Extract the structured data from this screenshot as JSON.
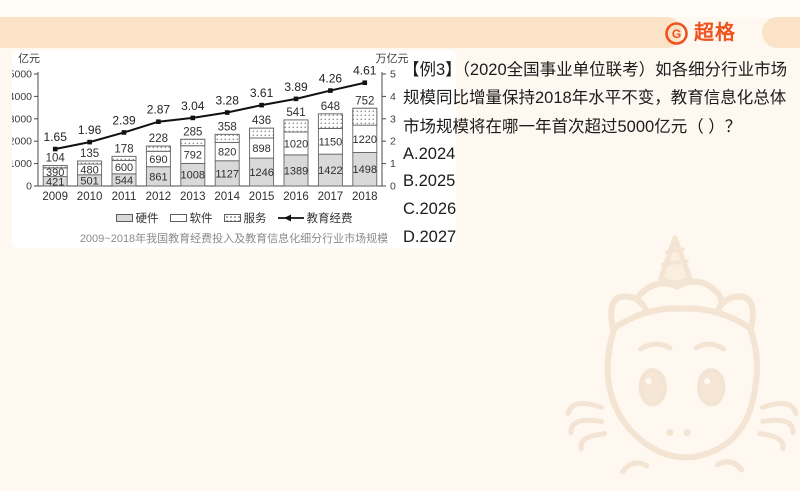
{
  "page": {
    "background": "#FEF8F1",
    "band_color": "#FAE3C6",
    "accent_color": "#F0521D"
  },
  "logo": {
    "text": "超格",
    "icon": "g-circle-icon",
    "color": "#F0521D"
  },
  "question": {
    "text": "【例3】（2020全国事业单位联考）如各细分行业市场规模同比增量保持2018年水平不变，教育信息化总体市场规模将在哪一年首次超过5000亿元（ ）？",
    "options": [
      "A.2024",
      "B.2025",
      "C.2026",
      "D.2027"
    ]
  },
  "chart_data": {
    "type": "bar",
    "subtype": "stacked-bars-with-line",
    "title": "2009~2018年我国教育经费投入及教育信息化细分行业市场规模",
    "categories": [
      "2009",
      "2010",
      "2011",
      "2012",
      "2013",
      "2014",
      "2015",
      "2016",
      "2017",
      "2018"
    ],
    "series": [
      {
        "name": "硬件",
        "style": "gray",
        "values": [
          421,
          501,
          544,
          861,
          1008,
          1127,
          1246,
          1389,
          1422,
          1498
        ]
      },
      {
        "name": "软件",
        "style": "white",
        "values": [
          390,
          480,
          600,
          690,
          792,
          820,
          898,
          1020,
          1150,
          1220
        ]
      },
      {
        "name": "服务",
        "style": "dotted",
        "values": [
          104,
          135,
          178,
          228,
          285,
          358,
          436,
          541,
          648,
          752
        ]
      }
    ],
    "line_series": {
      "name": "教育经费",
      "axis": "right",
      "values": [
        1.65,
        1.96,
        2.39,
        2.87,
        3.04,
        3.28,
        3.61,
        3.89,
        4.26,
        4.61
      ]
    },
    "left_axis": {
      "label": "亿元",
      "min": 0,
      "max": 5000,
      "ticks": [
        0,
        1000,
        2000,
        3000,
        4000,
        5000
      ]
    },
    "right_axis": {
      "label": "万亿元",
      "min": 0,
      "max": 5,
      "ticks": [
        0,
        1,
        2,
        3,
        4,
        5
      ]
    },
    "legend": [
      "硬件",
      "软件",
      "服务",
      "教育经费"
    ],
    "legend_position": "bottom",
    "grid": false
  }
}
